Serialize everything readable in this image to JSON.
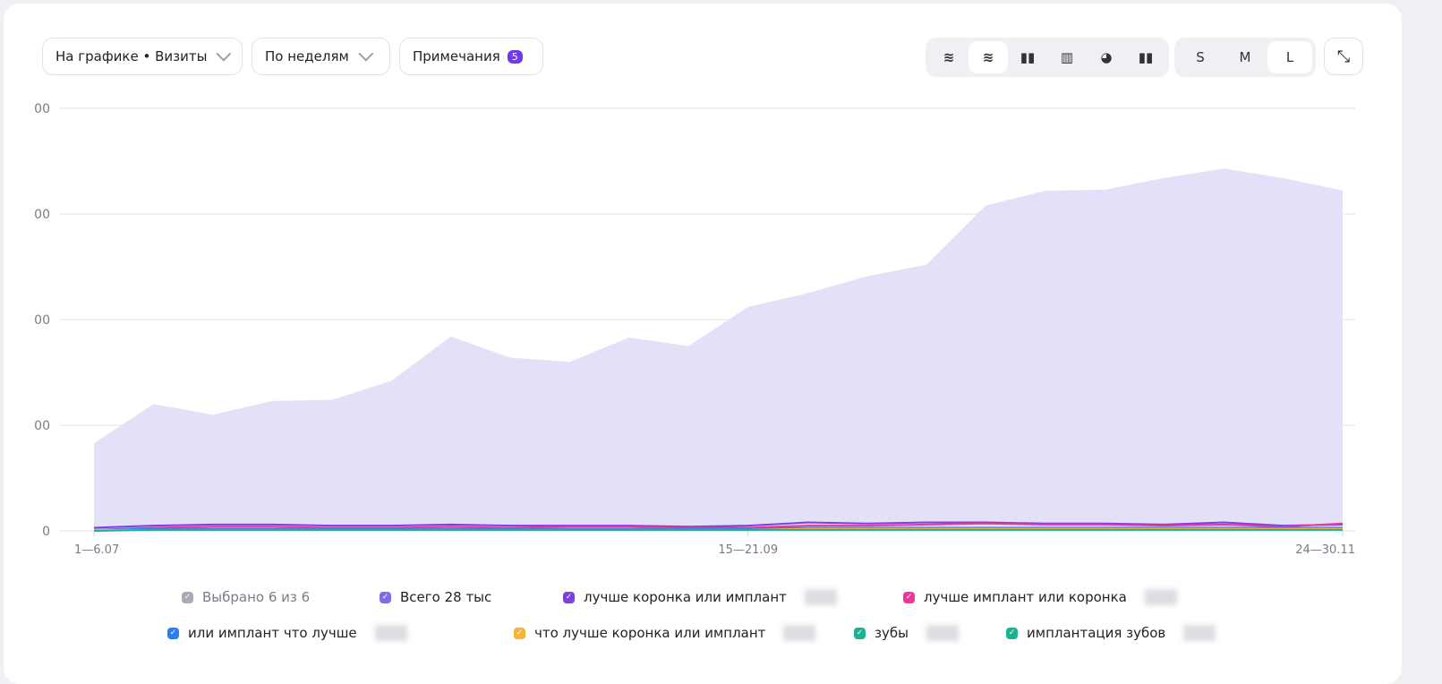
{
  "toolbar": {
    "metric_select": "На графике • Визиты",
    "period_select": "По неделям",
    "notes_label": "Примечания",
    "notes_count": "5",
    "chart_types": [
      "area-line-icon",
      "stacked-area-icon",
      "bar-icon",
      "stacked-bar-icon",
      "pie-icon",
      "column-icon"
    ],
    "active_chart_type": 1,
    "sizes": [
      "S",
      "M",
      "L"
    ],
    "active_size": "L",
    "collapse_icon": "collapse-icon"
  },
  "chart_data": {
    "type": "area",
    "ylim": [
      0,
      4
    ],
    "grid": true,
    "y_tick_labels": [
      "0",
      "00",
      "00",
      "00",
      "00"
    ],
    "x_tick_labels": [
      "1—6.07",
      "15—21.09",
      "24—30.11"
    ],
    "x_tick_index": [
      0,
      11,
      21
    ],
    "series": [
      {
        "name": "Всего",
        "color": "#e3e1f7",
        "values": [
          0.83,
          1.2,
          1.1,
          1.23,
          1.24,
          1.42,
          1.84,
          1.64,
          1.6,
          1.83,
          1.75,
          2.12,
          2.25,
          2.41,
          2.52,
          3.08,
          3.22,
          3.23,
          3.34,
          3.43,
          3.34,
          3.22
        ]
      },
      {
        "color": "#7b3fe4",
        "values": [
          0.03,
          0.05,
          0.06,
          0.06,
          0.05,
          0.05,
          0.06,
          0.05,
          0.05,
          0.05,
          0.04,
          0.05,
          0.08,
          0.07,
          0.08,
          0.08,
          0.07,
          0.07,
          0.06,
          0.08,
          0.05,
          0.06
        ]
      },
      {
        "color": "#f0359a",
        "values": [
          0.01,
          0.03,
          0.04,
          0.04,
          0.03,
          0.03,
          0.04,
          0.03,
          0.04,
          0.04,
          0.03,
          0.03,
          0.05,
          0.05,
          0.06,
          0.07,
          0.06,
          0.06,
          0.05,
          0.06,
          0.04,
          0.07
        ]
      },
      {
        "color": "#2a7df5",
        "values": [
          0.01,
          0.02,
          0.02,
          0.02,
          0.02,
          0.02,
          0.02,
          0.02,
          0.02,
          0.02,
          0.02,
          0.02,
          0.03,
          0.03,
          0.03,
          0.03,
          0.03,
          0.03,
          0.03,
          0.03,
          0.03,
          0.03
        ]
      },
      {
        "color": "#f7b23b",
        "values": [
          0.01,
          0.01,
          0.01,
          0.01,
          0.01,
          0.01,
          0.01,
          0.01,
          0.01,
          0.01,
          0.01,
          0.01,
          0.02,
          0.02,
          0.02,
          0.02,
          0.02,
          0.02,
          0.02,
          0.02,
          0.02,
          0.02
        ]
      },
      {
        "color": "#19b394",
        "values": [
          0.0,
          0.01,
          0.01,
          0.01,
          0.01,
          0.01,
          0.01,
          0.01,
          0.01,
          0.01,
          0.01,
          0.01,
          0.01,
          0.01,
          0.01,
          0.01,
          0.01,
          0.01,
          0.01,
          0.01,
          0.01,
          0.01
        ]
      }
    ]
  },
  "legend": [
    {
      "label": "Выбрано 6 из 6",
      "color": "#a7abb5"
    },
    {
      "label": "Всего    28  тыс",
      "color": "#7b6ee8"
    },
    {
      "label": "лучше коронка или имплант",
      "color": "#7b3fe4"
    },
    {
      "label": "лучше имплант или коронка",
      "color": "#f0359a"
    },
    {
      "label": "или имплант что лучше",
      "color": "#2a7df5"
    },
    {
      "label": "что лучше коронка или имплант",
      "color": "#f7b23b"
    },
    {
      "label": "зубы",
      "color": "#19b394"
    },
    {
      "label": "имплантация зубов",
      "color": "#19b394"
    }
  ]
}
